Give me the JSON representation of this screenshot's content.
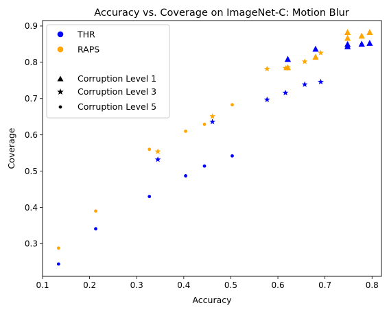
{
  "chart_data": {
    "type": "scatter",
    "title": "Accuracy vs. Coverage on ImageNet-C: Motion Blur",
    "xlabel": "Accuracy",
    "ylabel": "Coverage",
    "xlim": [
      0.1,
      0.82
    ],
    "ylim": [
      0.21,
      0.915
    ],
    "xticks": [
      "0.1",
      "0.2",
      "0.3",
      "0.4",
      "0.5",
      "0.6",
      "0.7",
      "0.8"
    ],
    "yticks": [
      "0.3",
      "0.4",
      "0.5",
      "0.6",
      "0.7",
      "0.8",
      "0.9"
    ],
    "grid": false,
    "legend_position": "upper-left",
    "methods": [
      {
        "name": "THR",
        "color": "#0000ff"
      },
      {
        "name": "RAPS",
        "color": "#ffa500"
      }
    ],
    "levels": [
      {
        "name": "Corruption Level 1",
        "marker": "triangle"
      },
      {
        "name": "Corruption Level 3",
        "marker": "star"
      },
      {
        "name": "Corruption Level 5",
        "marker": "dot"
      }
    ],
    "series": [
      {
        "method": "THR",
        "level": "Corruption Level 1",
        "points": [
          [
            0.621,
            0.808
          ],
          [
            0.68,
            0.836
          ],
          [
            0.748,
            0.849
          ],
          [
            0.748,
            0.843
          ],
          [
            0.778,
            0.85
          ],
          [
            0.795,
            0.852
          ]
        ]
      },
      {
        "method": "THR",
        "level": "Corruption Level 3",
        "points": [
          [
            0.345,
            0.532
          ],
          [
            0.461,
            0.636
          ],
          [
            0.577,
            0.697
          ],
          [
            0.616,
            0.716
          ],
          [
            0.657,
            0.739
          ],
          [
            0.691,
            0.746
          ]
        ]
      },
      {
        "method": "THR",
        "level": "Corruption Level 5",
        "points": [
          [
            0.134,
            0.244
          ],
          [
            0.213,
            0.341
          ],
          [
            0.327,
            0.43
          ],
          [
            0.404,
            0.487
          ],
          [
            0.444,
            0.514
          ],
          [
            0.503,
            0.542
          ]
        ]
      },
      {
        "method": "RAPS",
        "level": "Corruption Level 1",
        "points": [
          [
            0.621,
            0.785
          ],
          [
            0.68,
            0.814
          ],
          [
            0.748,
            0.882
          ],
          [
            0.748,
            0.866
          ],
          [
            0.778,
            0.872
          ],
          [
            0.795,
            0.882
          ]
        ]
      },
      {
        "method": "RAPS",
        "level": "Corruption Level 3",
        "points": [
          [
            0.345,
            0.554
          ],
          [
            0.461,
            0.651
          ],
          [
            0.577,
            0.782
          ],
          [
            0.616,
            0.784
          ],
          [
            0.621,
            0.786
          ],
          [
            0.657,
            0.802
          ],
          [
            0.691,
            0.826
          ]
        ]
      },
      {
        "method": "RAPS",
        "level": "Corruption Level 5",
        "points": [
          [
            0.134,
            0.288
          ],
          [
            0.213,
            0.39
          ],
          [
            0.327,
            0.56
          ],
          [
            0.404,
            0.61
          ],
          [
            0.444,
            0.629
          ],
          [
            0.503,
            0.683
          ]
        ]
      }
    ]
  }
}
